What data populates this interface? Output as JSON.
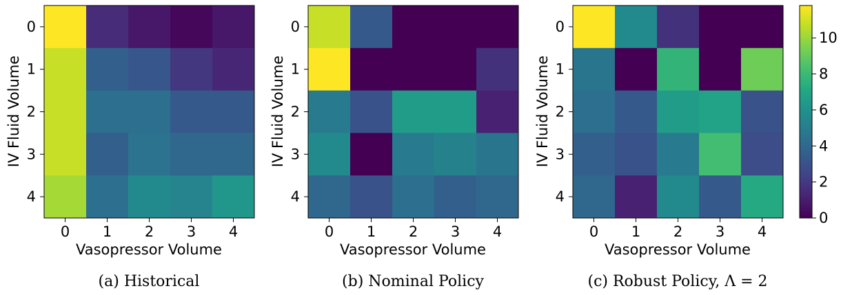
{
  "chart_data": [
    {
      "type": "heatmap",
      "caption": "(a) Historical",
      "xlabel": "Vasopressor Volume",
      "ylabel": "IV Fluid Volume",
      "x_ticks": [
        "0",
        "1",
        "2",
        "3",
        "4"
      ],
      "y_ticks": [
        "0",
        "1",
        "2",
        "3",
        "4"
      ],
      "values": [
        [
          11.8,
          1.5,
          0.8,
          0.2,
          0.8
        ],
        [
          10.8,
          3.6,
          3.2,
          1.9,
          1.3
        ],
        [
          10.8,
          4.3,
          4.3,
          3.3,
          3.3
        ],
        [
          10.8,
          3.6,
          4.5,
          4.0,
          4.0
        ],
        [
          10.2,
          4.3,
          5.6,
          5.3,
          6.2
        ]
      ]
    },
    {
      "type": "heatmap",
      "caption": "(b) Nominal Policy",
      "xlabel": "Vasopressor Volume",
      "ylabel": "IV Fluid Volume",
      "x_ticks": [
        "0",
        "1",
        "2",
        "3",
        "4"
      ],
      "y_ticks": [
        "0",
        "1",
        "2",
        "3",
        "4"
      ],
      "values": [
        [
          10.8,
          3.3,
          0.0,
          0.0,
          0.0
        ],
        [
          11.8,
          0.0,
          0.0,
          0.0,
          1.7
        ],
        [
          4.8,
          3.0,
          6.5,
          6.5,
          1.1
        ],
        [
          5.6,
          0.0,
          4.8,
          5.2,
          4.6
        ],
        [
          4.0,
          3.0,
          4.3,
          3.6,
          4.0
        ]
      ]
    },
    {
      "type": "heatmap",
      "caption": "(c) Robust Policy, Λ = 2",
      "xlabel": "Vasopressor Volume",
      "ylabel": "IV Fluid Volume",
      "x_ticks": [
        "0",
        "1",
        "2",
        "3",
        "4"
      ],
      "y_ticks": [
        "0",
        "1",
        "2",
        "3",
        "4"
      ],
      "values": [
        [
          11.8,
          5.6,
          1.7,
          0.0,
          0.0
        ],
        [
          4.6,
          0.0,
          7.7,
          0.0,
          9.2
        ],
        [
          4.3,
          3.3,
          6.5,
          6.8,
          3.0
        ],
        [
          3.6,
          3.0,
          4.8,
          8.2,
          2.8
        ],
        [
          4.0,
          1.1,
          5.6,
          3.3,
          7.2
        ]
      ]
    }
  ],
  "colorbar": {
    "min": 0,
    "max": 11.8,
    "ticks": [
      "0",
      "2",
      "4",
      "6",
      "8",
      "10"
    ],
    "colormap": "viridis"
  }
}
